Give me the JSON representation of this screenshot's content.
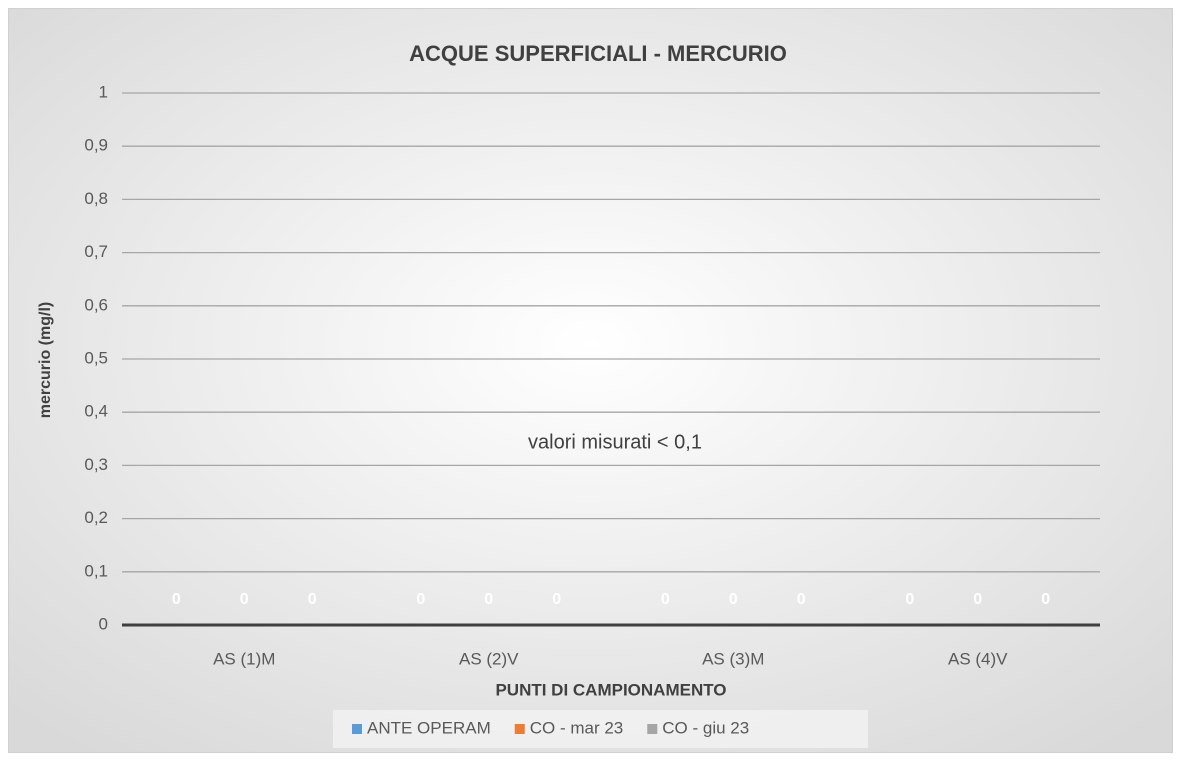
{
  "chart_data": {
    "type": "bar",
    "title": "ACQUE SUPERFICIALI - MERCURIO",
    "x_label": "PUNTI DI CAMPIONAMENTO",
    "y_label": "mercurio (mg/l)",
    "annotation": "valori misurati  < 0,1",
    "categories": [
      "AS (1)M",
      "AS (2)V",
      "AS (3)M",
      "AS (4)V"
    ],
    "series": [
      {
        "name": "ANTE OPERAM",
        "color": "#5b9bd5",
        "values": [
          0,
          0,
          0,
          0
        ]
      },
      {
        "name": "CO - mar 23",
        "color": "#ed7d31",
        "values": [
          0,
          0,
          0,
          0
        ]
      },
      {
        "name": "CO - giu 23",
        "color": "#a5a5a5",
        "values": [
          0,
          0,
          0,
          0
        ]
      }
    ],
    "ylim": [
      0,
      1
    ],
    "yticks": [
      0,
      {
        "value": 0.1,
        "label": "0,1"
      },
      {
        "value": 0.2,
        "label": "0,2"
      },
      {
        "value": 0.3,
        "label": "0,3"
      },
      {
        "value": 0.4,
        "label": "0,4"
      },
      {
        "value": 0.5,
        "label": "0,5"
      },
      {
        "value": 0.6,
        "label": "0,6"
      },
      {
        "value": 0.7,
        "label": "0,7"
      },
      {
        "value": 0.8,
        "label": "0,8"
      },
      {
        "value": 0.9,
        "label": "0,9"
      },
      1
    ],
    "grid": true,
    "legend": "bottom"
  }
}
